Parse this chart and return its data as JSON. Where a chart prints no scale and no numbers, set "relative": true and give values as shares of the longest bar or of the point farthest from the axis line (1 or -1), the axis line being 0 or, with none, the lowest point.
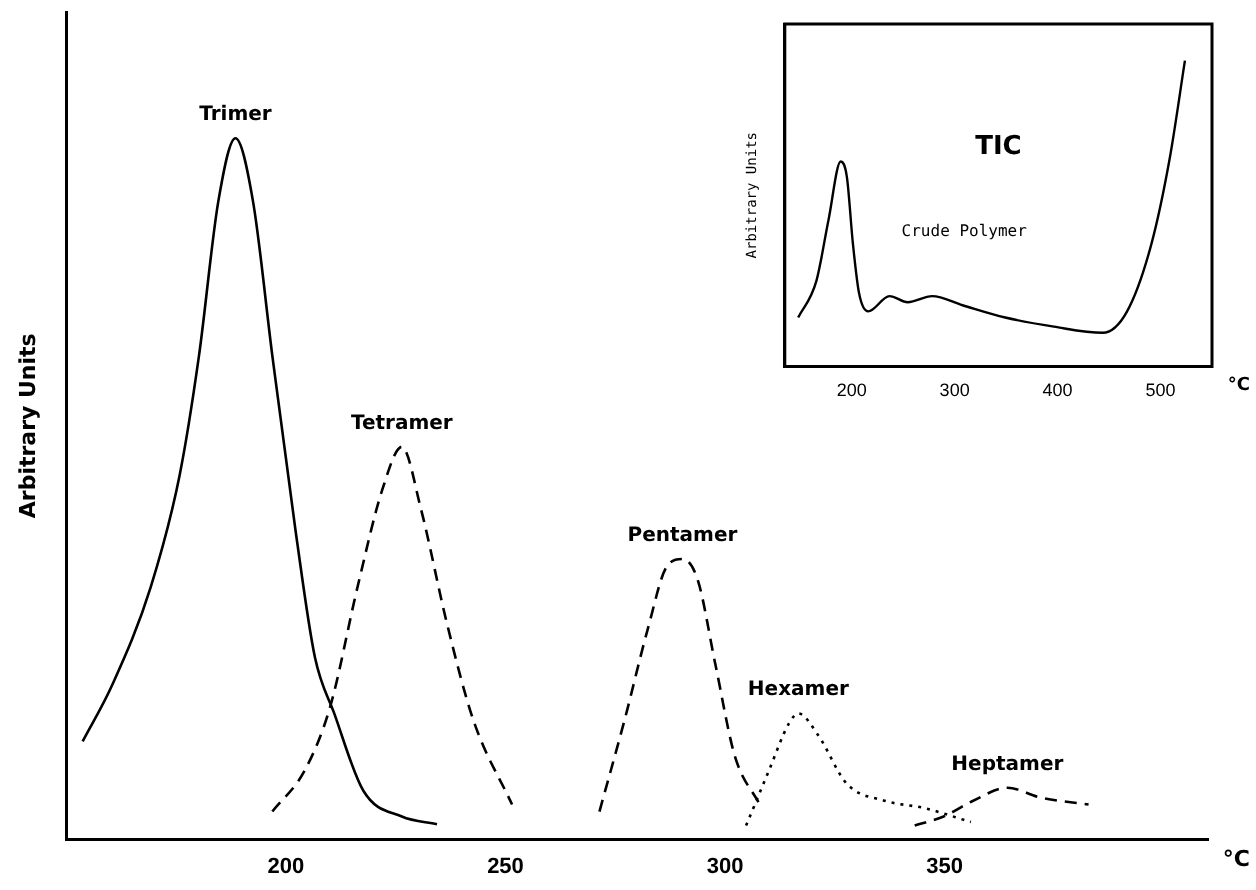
{
  "chart_data": [
    {
      "type": "line",
      "ylabel": "Arbitrary Units",
      "xlabel": "°C",
      "relative": true,
      "xlim": [
        150,
        410
      ],
      "xticks": [
        200,
        250,
        300,
        350
      ],
      "tick_labels": "x",
      "grid": false,
      "legend": false,
      "marker": "none",
      "series": [
        {
          "name": "Trimer",
          "color": "#000000",
          "line_style": "solid",
          "x": [
            153.7,
            160.4,
            169.2,
            175.8,
            180.2,
            184.6,
            188.5,
            192.5,
            196.9,
            202.2,
            206.6,
            211,
            217.6,
            226.4,
            234.4
          ],
          "values": [
            0.14,
            0.22,
            0.36,
            0.52,
            0.69,
            0.91,
            1.0,
            0.91,
            0.69,
            0.44,
            0.26,
            0.18,
            0.07,
            0.033,
            0.022
          ]
        },
        {
          "name": "Tetramer",
          "color": "#000000",
          "line_style": "dashed",
          "x": [
            196.9,
            204.4,
            210.1,
            216.3,
            222,
            226.4,
            230.8,
            236.6,
            242.7,
            251.5
          ],
          "values": [
            0.04,
            0.1,
            0.19,
            0.36,
            0.5,
            0.56,
            0.47,
            0.31,
            0.17,
            0.05
          ]
        },
        {
          "name": "Pentamer",
          "color": "#000000",
          "line_style": "dashed",
          "x": [
            271.4,
            277.1,
            282.4,
            286.8,
            290.3,
            293.8,
            297.8,
            302.2,
            307.9
          ],
          "values": [
            0.04,
            0.17,
            0.3,
            0.39,
            0.4,
            0.37,
            0.25,
            0.12,
            0.05
          ]
        },
        {
          "name": "Hexamer",
          "color": "#000000",
          "line_style": "dotted",
          "x": [
            304.8,
            310.1,
            314.5,
            316.7,
            321.1,
            327.7,
            336.6,
            345.4,
            356
          ],
          "values": [
            0.02,
            0.1,
            0.165,
            0.18,
            0.15,
            0.08,
            0.055,
            0.045,
            0.025
          ]
        },
        {
          "name": "Heptamer",
          "color": "#000000",
          "line_style": "dashed",
          "x": [
            343.2,
            349.8,
            356.4,
            364.3,
            371.8,
            382.8
          ],
          "values": [
            0.02,
            0.033,
            0.055,
            0.074,
            0.06,
            0.05
          ]
        }
      ]
    },
    {
      "type": "line",
      "title": "TIC",
      "ylabel": "Arbitrary Units",
      "xlabel": "°C",
      "relative": true,
      "xlim": [
        135,
        550
      ],
      "xticks": [
        200,
        300,
        400,
        500
      ],
      "tick_labels": "x",
      "grid": false,
      "legend": false,
      "marker": "none",
      "annotations": [
        "Crude Polymer"
      ],
      "series": [
        {
          "color": "#000000",
          "line_style": "solid",
          "x": [
            148,
            165.7,
            177.5,
            189.3,
            195.3,
            201.2,
            207.1,
            216,
            236.7,
            254.4,
            278.1,
            307.7,
            349.1,
            396.4,
            443.8,
            467.5,
            491.1,
            508.9,
            523.7
          ],
          "values": [
            0.16,
            0.28,
            0.48,
            0.67,
            0.62,
            0.4,
            0.24,
            0.18,
            0.23,
            0.21,
            0.23,
            0.2,
            0.16,
            0.13,
            0.11,
            0.18,
            0.4,
            0.68,
            1.0
          ]
        }
      ]
    }
  ]
}
